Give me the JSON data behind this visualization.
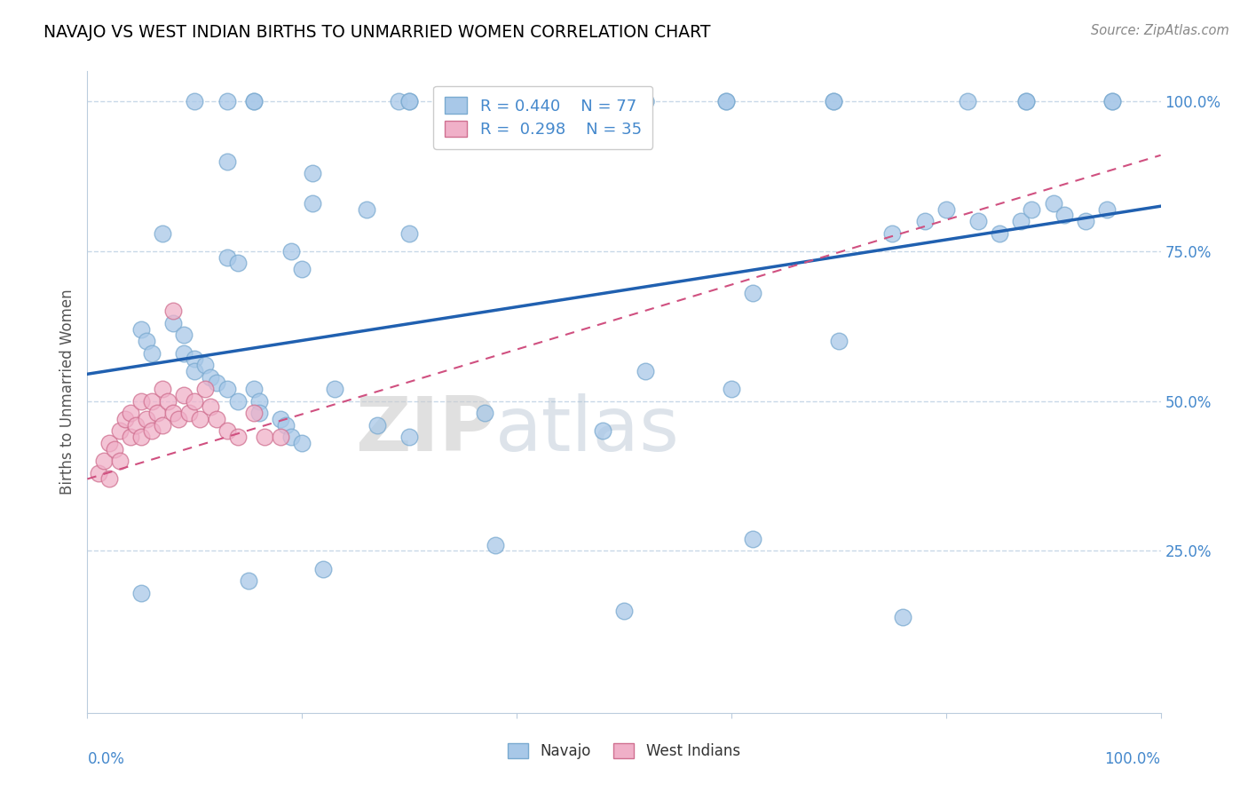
{
  "title": "NAVAJO VS WEST INDIAN BIRTHS TO UNMARRIED WOMEN CORRELATION CHART",
  "source": "Source: ZipAtlas.com",
  "ylabel": "Births to Unmarried Women",
  "ytick_labels": [
    "100.0%",
    "75.0%",
    "50.0%",
    "25.0%"
  ],
  "ytick_values": [
    1.0,
    0.75,
    0.5,
    0.25
  ],
  "xmin": 0.0,
  "xmax": 1.0,
  "ymin": 0.0,
  "ymax": 1.05,
  "navajo_R": 0.44,
  "navajo_N": 77,
  "westindian_R": 0.298,
  "westindian_N": 35,
  "navajo_color": "#A8C8E8",
  "navajo_edge_color": "#7AAAD0",
  "navajo_line_color": "#2060B0",
  "westindian_color": "#F0B0C8",
  "westindian_edge_color": "#D07090",
  "westindian_line_color": "#D05080",
  "background_color": "#FFFFFF",
  "grid_color": "#C8D8E8",
  "title_color": "#000000",
  "axis_label_color": "#4488CC",
  "watermark_color": "#DDDDDD",
  "navajo_x": [
    0.1,
    0.13,
    0.155,
    0.155,
    0.29,
    0.3,
    0.3,
    0.41,
    0.41,
    0.52,
    0.52,
    0.595,
    0.595,
    0.695,
    0.695,
    0.82,
    0.875,
    0.875,
    0.955,
    0.955,
    0.13,
    0.21,
    0.21,
    0.26,
    0.3,
    0.07,
    0.13,
    0.14,
    0.19,
    0.2,
    0.05,
    0.055,
    0.06,
    0.08,
    0.09,
    0.09,
    0.1,
    0.1,
    0.11,
    0.115,
    0.12,
    0.13,
    0.14,
    0.155,
    0.16,
    0.16,
    0.18,
    0.185,
    0.19,
    0.2,
    0.23,
    0.27,
    0.3,
    0.37,
    0.48,
    0.52,
    0.6,
    0.62,
    0.7,
    0.75,
    0.78,
    0.8,
    0.83,
    0.85,
    0.87,
    0.88,
    0.9,
    0.91,
    0.93,
    0.95,
    0.05,
    0.15,
    0.22,
    0.38,
    0.5,
    0.62,
    0.76
  ],
  "navajo_y": [
    1.0,
    1.0,
    1.0,
    1.0,
    1.0,
    1.0,
    1.0,
    1.0,
    1.0,
    1.0,
    1.0,
    1.0,
    1.0,
    1.0,
    1.0,
    1.0,
    1.0,
    1.0,
    1.0,
    1.0,
    0.9,
    0.88,
    0.83,
    0.82,
    0.78,
    0.78,
    0.74,
    0.73,
    0.75,
    0.72,
    0.62,
    0.6,
    0.58,
    0.63,
    0.61,
    0.58,
    0.57,
    0.55,
    0.56,
    0.54,
    0.53,
    0.52,
    0.5,
    0.52,
    0.5,
    0.48,
    0.47,
    0.46,
    0.44,
    0.43,
    0.52,
    0.46,
    0.44,
    0.48,
    0.45,
    0.55,
    0.52,
    0.68,
    0.6,
    0.78,
    0.8,
    0.82,
    0.8,
    0.78,
    0.8,
    0.82,
    0.83,
    0.81,
    0.8,
    0.82,
    0.18,
    0.2,
    0.22,
    0.26,
    0.15,
    0.27,
    0.14
  ],
  "westindian_x": [
    0.01,
    0.015,
    0.02,
    0.02,
    0.025,
    0.03,
    0.03,
    0.035,
    0.04,
    0.04,
    0.045,
    0.05,
    0.05,
    0.055,
    0.06,
    0.06,
    0.065,
    0.07,
    0.07,
    0.075,
    0.08,
    0.085,
    0.09,
    0.095,
    0.1,
    0.105,
    0.11,
    0.115,
    0.12,
    0.13,
    0.14,
    0.155,
    0.165,
    0.18,
    0.08
  ],
  "westindian_y": [
    0.38,
    0.4,
    0.37,
    0.43,
    0.42,
    0.45,
    0.4,
    0.47,
    0.44,
    0.48,
    0.46,
    0.5,
    0.44,
    0.47,
    0.5,
    0.45,
    0.48,
    0.52,
    0.46,
    0.5,
    0.48,
    0.47,
    0.51,
    0.48,
    0.5,
    0.47,
    0.52,
    0.49,
    0.47,
    0.45,
    0.44,
    0.48,
    0.44,
    0.44,
    0.65
  ]
}
